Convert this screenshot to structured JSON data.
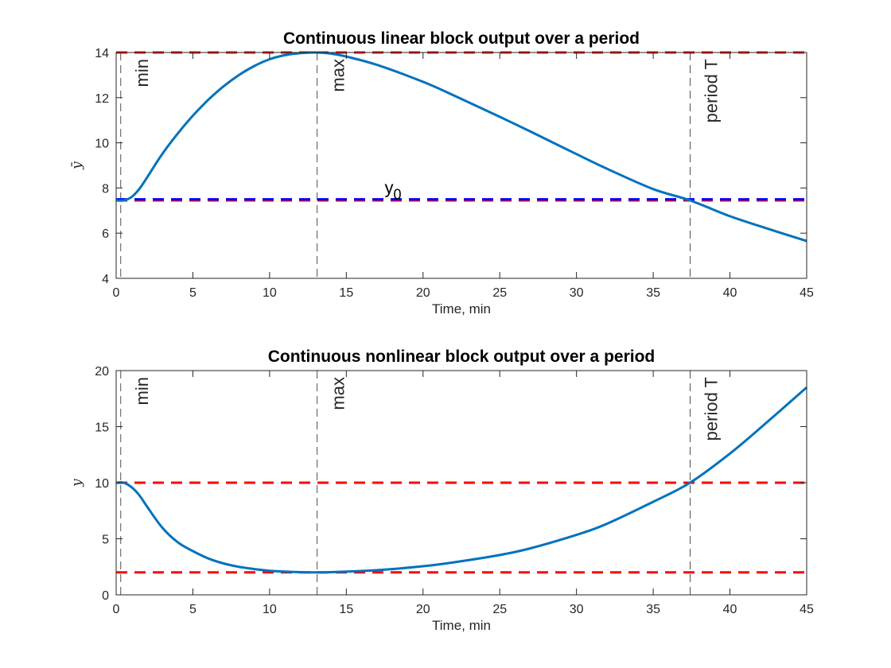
{
  "chart_data": [
    {
      "type": "line",
      "title": "Continuous linear block output over a period",
      "xlabel": "Time, min",
      "ylabel": "ȳ",
      "xlim": [
        0,
        45
      ],
      "ylim": [
        4,
        14
      ],
      "xticks": [
        0,
        5,
        10,
        15,
        20,
        25,
        30,
        35,
        40,
        45
      ],
      "yticks": [
        4,
        6,
        8,
        10,
        12,
        14
      ],
      "grid": false,
      "series": [
        {
          "color": "#0072BD",
          "x": [
            0,
            0.5,
            1,
            1.5,
            2,
            3,
            4,
            5,
            6,
            7,
            8,
            9,
            10,
            11,
            12,
            13,
            14,
            15,
            17,
            20,
            22,
            25,
            27,
            30,
            32,
            35,
            37.4,
            40,
            42,
            45
          ],
          "y": [
            7.45,
            7.45,
            7.6,
            7.95,
            8.45,
            9.5,
            10.4,
            11.2,
            11.9,
            12.5,
            13.0,
            13.4,
            13.7,
            13.88,
            13.97,
            14.0,
            13.95,
            13.82,
            13.45,
            12.7,
            12.1,
            11.15,
            10.5,
            9.5,
            8.85,
            7.95,
            7.45,
            6.75,
            6.3,
            5.65
          ]
        }
      ],
      "hlines": [
        {
          "y": 14,
          "color": "#FF0000",
          "style": "dashed"
        },
        {
          "y": 7.45,
          "color": "#FF0000",
          "style": "dashed"
        },
        {
          "y": 7.5,
          "color": "#0000FF",
          "style": "dashed"
        }
      ],
      "vlines": [
        {
          "x": 0.3,
          "label": "min"
        },
        {
          "x": 13.1,
          "label": "max"
        },
        {
          "x": 37.4,
          "label": "period T"
        }
      ],
      "annotations": [
        {
          "text": "y",
          "subscript": "0",
          "x": 17.5,
          "y": 7.75
        }
      ]
    },
    {
      "type": "line",
      "title": "Continuous nonlinear block output over a period",
      "xlabel": "Time, min",
      "ylabel": "y",
      "xlim": [
        0,
        45
      ],
      "ylim": [
        0,
        20
      ],
      "xticks": [
        0,
        5,
        10,
        15,
        20,
        25,
        30,
        35,
        40,
        45
      ],
      "yticks": [
        0,
        5,
        10,
        15,
        20
      ],
      "grid": false,
      "series": [
        {
          "color": "#0072BD",
          "x": [
            0,
            0.5,
            1,
            1.5,
            2,
            3,
            4,
            5,
            6,
            7,
            8,
            9,
            10,
            11,
            12,
            13,
            14,
            15,
            17,
            20,
            22,
            25,
            27,
            30,
            32,
            35,
            37.4,
            40,
            42,
            45
          ],
          "y": [
            10,
            10,
            9.6,
            8.9,
            7.9,
            6.0,
            4.7,
            3.9,
            3.25,
            2.8,
            2.5,
            2.3,
            2.15,
            2.07,
            2.02,
            2.0,
            2.02,
            2.07,
            2.2,
            2.55,
            2.9,
            3.55,
            4.15,
            5.35,
            6.35,
            8.3,
            10.0,
            12.6,
            14.9,
            18.5
          ]
        }
      ],
      "hlines": [
        {
          "y": 10,
          "color": "#FF0000",
          "style": "dashed"
        },
        {
          "y": 2,
          "color": "#FF0000",
          "style": "dashed"
        }
      ],
      "vlines": [
        {
          "x": 0.3,
          "label": "min"
        },
        {
          "x": 13.1,
          "label": "max"
        },
        {
          "x": 37.4,
          "label": "period T"
        }
      ]
    }
  ]
}
